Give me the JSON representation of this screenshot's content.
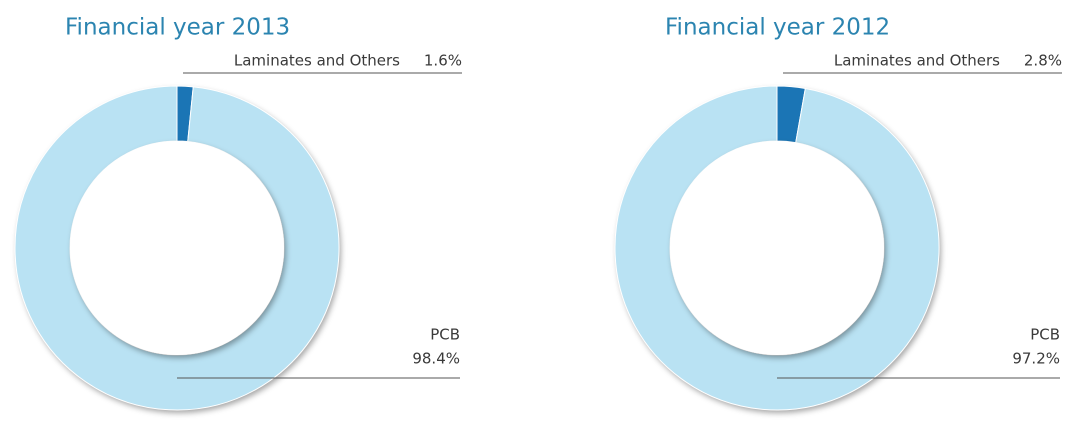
{
  "chart_data": [
    {
      "type": "donut",
      "title": "Financial year 2013",
      "categories": [
        "Laminates and Others",
        "PCB"
      ],
      "values": [
        1.6,
        98.4
      ],
      "value_labels": [
        "1.6%",
        "98.4%"
      ],
      "colors": [
        "#1b75b5",
        "#b9e2f3"
      ]
    },
    {
      "type": "donut",
      "title": "Financial year 2012",
      "categories": [
        "Laminates and Others",
        "PCB"
      ],
      "values": [
        2.8,
        97.2
      ],
      "value_labels": [
        "2.8%",
        "97.2%"
      ],
      "colors": [
        "#1b75b5",
        "#b9e2f3"
      ]
    }
  ]
}
